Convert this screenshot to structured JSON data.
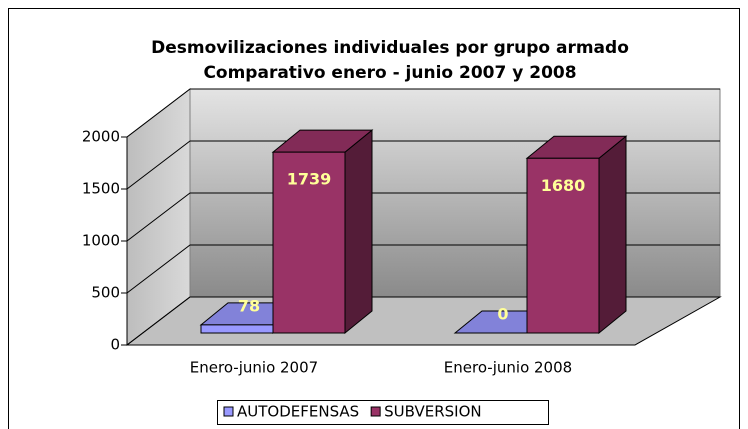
{
  "chart_data": {
    "type": "bar3d",
    "title": [
      "Desmovilizaciones individuales por grupo armado",
      "Comparativo enero - junio 2007 y 2008"
    ],
    "categories": [
      "Enero-junio 2007",
      "Enero-junio 2008"
    ],
    "series": [
      {
        "name": "AUTODEFENSAS",
        "color": "#9999ff",
        "values": [
          78,
          0
        ]
      },
      {
        "name": "SUBVERSION",
        "color": "#993366",
        "values": [
          1739,
          1680
        ]
      }
    ],
    "ylim": [
      0,
      2000
    ],
    "yticks": [
      0,
      500,
      1000,
      1500,
      2000
    ],
    "grid": true,
    "legend": "bottom"
  }
}
